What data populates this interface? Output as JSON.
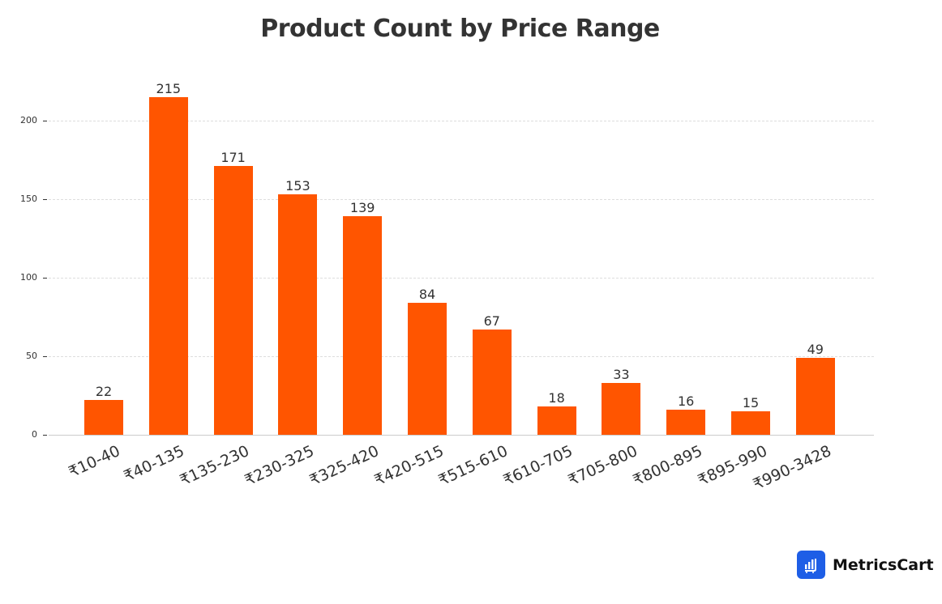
{
  "chart_data": {
    "type": "bar",
    "title": "Product Count by Price Range",
    "xlabel": "",
    "ylabel": "",
    "categories": [
      "₹10-40",
      "₹40-135",
      "₹135-230",
      "₹230-325",
      "₹325-420",
      "₹420-515",
      "₹515-610",
      "₹610-705",
      "₹705-800",
      "₹800-895",
      "₹895-990",
      "₹990-3428"
    ],
    "values": [
      22,
      215,
      171,
      153,
      139,
      84,
      67,
      18,
      33,
      16,
      15,
      49
    ],
    "ylim": [
      0,
      225
    ],
    "yticks": [
      0,
      50,
      100,
      150,
      200
    ],
    "grid": true,
    "legend": null,
    "bar_color": "#ff5500"
  },
  "header": {
    "title": "Product Count by Price Range"
  },
  "yaxis": {
    "ticks": [
      "0",
      "50",
      "100",
      "150",
      "200"
    ]
  },
  "bars": [
    {
      "label": "₹10-40",
      "value": "22"
    },
    {
      "label": "₹40-135",
      "value": "215"
    },
    {
      "label": "₹135-230",
      "value": "171"
    },
    {
      "label": "₹230-325",
      "value": "153"
    },
    {
      "label": "₹325-420",
      "value": "139"
    },
    {
      "label": "₹420-515",
      "value": "84"
    },
    {
      "label": "₹515-610",
      "value": "67"
    },
    {
      "label": "₹610-705",
      "value": "18"
    },
    {
      "label": "₹705-800",
      "value": "33"
    },
    {
      "label": "₹800-895",
      "value": "16"
    },
    {
      "label": "₹895-990",
      "value": "15"
    },
    {
      "label": "₹990-3428",
      "value": "49"
    }
  ],
  "colors": {
    "bar": "#ff5500",
    "brand": "#1e5ee6"
  },
  "brand": {
    "name": "MetricsCart",
    "icon": "bar-chart-cart-icon"
  }
}
